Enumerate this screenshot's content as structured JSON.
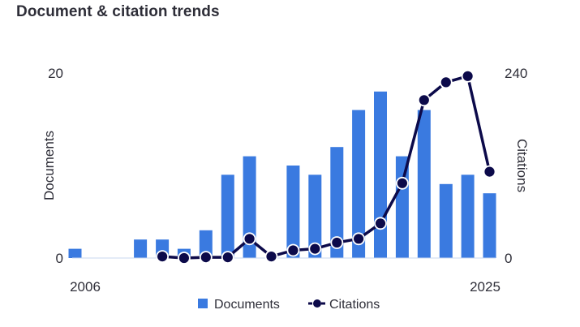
{
  "header": {
    "title": "Document & citation trends"
  },
  "chart_data": {
    "type": "bar",
    "categories": [
      "2006",
      "2007",
      "2008",
      "2009",
      "2010",
      "2011",
      "2012",
      "2013",
      "2014",
      "2015",
      "2016",
      "2017",
      "2018",
      "2019",
      "2020",
      "2021",
      "2022",
      "2023",
      "2024",
      "2025"
    ],
    "x_tick_labels": {
      "first": "2006",
      "last": "2025"
    },
    "ylabel": "Documents",
    "ylabel_right": "Citations",
    "ylim": [
      0,
      20
    ],
    "ylim_right": [
      0,
      240
    ],
    "yticks": [
      "0",
      "20"
    ],
    "yticks_right": [
      "0",
      "240"
    ],
    "legend_position": "bottom-center",
    "series": [
      {
        "name": "Documents",
        "type": "bar",
        "axis": "left",
        "color": "#3a7ae0",
        "values": [
          1,
          0,
          0,
          2,
          2,
          1,
          3,
          9,
          11,
          0,
          10,
          9,
          12,
          16,
          18,
          11,
          16,
          8,
          9,
          7
        ]
      },
      {
        "name": "Citations",
        "type": "line",
        "axis": "right",
        "color": "#0c0a4a",
        "values": [
          null,
          null,
          null,
          null,
          2,
          0,
          1,
          1,
          25,
          2,
          10,
          12,
          20,
          25,
          45,
          97,
          205,
          228,
          236,
          112
        ]
      }
    ]
  }
}
